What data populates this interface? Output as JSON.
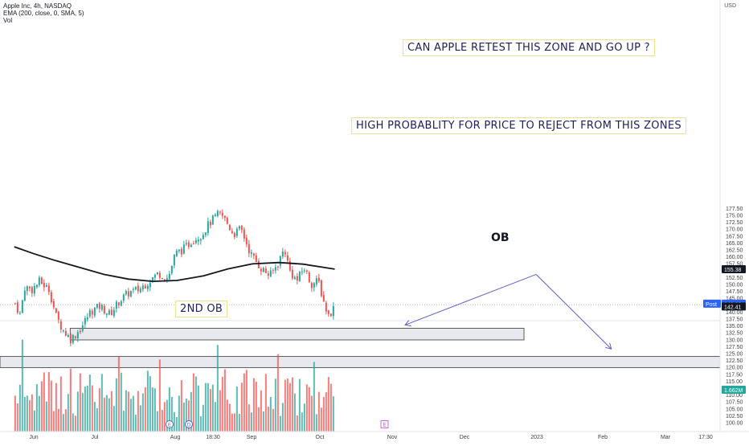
{
  "header": {
    "symbol_line": "Apple Inc, 4h, NASDAQ",
    "ema_line": "EMA (200, close, 0, SMA, 5)",
    "vol_line": "Vol"
  },
  "currency": "USD",
  "annotations": {
    "retest_question": "CAN APPLE RETEST THIS ZONE AND GO UP ?",
    "rejection_note": "HIGH PROBABLITY FOR PRICE TO REJECT FROM THIS ZONES",
    "ob_label": "OB",
    "second_ob_label": "2ND OB"
  },
  "price_badges": {
    "ema": "155.38",
    "post_label": "Post",
    "post": "142.66",
    "last": "142.41",
    "volume": "1.662M"
  },
  "event_markers": {
    "earnings": "E",
    "dividend": "D"
  },
  "colors": {
    "up": "#26a69a",
    "down": "#ef5350",
    "ema": "#131722",
    "arrow": "#5b5fc7",
    "post_badge": "#2962ff",
    "volume_badge": "#26a69a"
  },
  "chart_data": {
    "type": "candlestick",
    "title": "Apple Inc, 4h, NASDAQ",
    "y_axis": {
      "ylim": [
        97.5,
        178.5
      ],
      "ticks": [
        100.0,
        102.5,
        105.0,
        107.5,
        110.0,
        112.5,
        115.0,
        117.5,
        120.0,
        122.5,
        125.0,
        127.5,
        130.0,
        132.5,
        135.0,
        137.5,
        140.0,
        142.5,
        145.0,
        147.5,
        150.0,
        152.5,
        155.0,
        157.5,
        160.0,
        162.5,
        165.0,
        167.5,
        170.0,
        172.5,
        175.0,
        177.5
      ]
    },
    "x_axis": {
      "ticks": [
        "Jun",
        "Jul",
        "Aug",
        "18:30",
        "Sep",
        "Oct",
        "Nov",
        "Dec",
        "2023",
        "Feb",
        "Mar",
        "17:30"
      ]
    },
    "price_path": [
      {
        "x": "May 24",
        "close": 143.0
      },
      {
        "x": "May 26",
        "close": 139.0
      },
      {
        "x": "May 28",
        "close": 149.0
      },
      {
        "x": "May 31",
        "close": 148.0
      },
      {
        "x": "Jun 3",
        "close": 151.0
      },
      {
        "x": "Jun 7",
        "close": 148.0
      },
      {
        "x": "Jun 10",
        "close": 138.0
      },
      {
        "x": "Jun 13",
        "close": 133.0
      },
      {
        "x": "Jun 16",
        "close": 130.0
      },
      {
        "x": "Jun 20",
        "close": 134.0
      },
      {
        "x": "Jun 24",
        "close": 140.0
      },
      {
        "x": "Jun 28",
        "close": 142.0
      },
      {
        "x": "Jul 2",
        "close": 139.0
      },
      {
        "x": "Jul 6",
        "close": 144.0
      },
      {
        "x": "Jul 10",
        "close": 147.0
      },
      {
        "x": "Jul 14",
        "close": 148.0
      },
      {
        "x": "Jul 18",
        "close": 151.0
      },
      {
        "x": "Jul 22",
        "close": 154.0
      },
      {
        "x": "Jul 26",
        "close": 152.0
      },
      {
        "x": "Jul 29",
        "close": 161.0
      },
      {
        "x": "Aug 2",
        "close": 163.0
      },
      {
        "x": "Aug 5",
        "close": 166.0
      },
      {
        "x": "Aug 9",
        "close": 168.0
      },
      {
        "x": "Aug 12",
        "close": 172.0
      },
      {
        "x": "Aug 16",
        "close": 175.5
      },
      {
        "x": "Aug 18",
        "close": 174.0
      },
      {
        "x": "Aug 22",
        "close": 168.0
      },
      {
        "x": "Aug 25",
        "close": 170.0
      },
      {
        "x": "Aug 29",
        "close": 161.0
      },
      {
        "x": "Sep 2",
        "close": 156.0
      },
      {
        "x": "Sep 6",
        "close": 153.0
      },
      {
        "x": "Sep 9",
        "close": 157.0
      },
      {
        "x": "Sep 12",
        "close": 163.0
      },
      {
        "x": "Sep 14",
        "close": 155.0
      },
      {
        "x": "Sep 17",
        "close": 151.0
      },
      {
        "x": "Sep 20",
        "close": 156.0
      },
      {
        "x": "Sep 23",
        "close": 150.0
      },
      {
        "x": "Sep 26",
        "close": 151.0
      },
      {
        "x": "Sep 28",
        "close": 144.0
      },
      {
        "x": "Sep 30",
        "close": 138.5
      },
      {
        "x": "Oct 3",
        "close": 142.4
      }
    ],
    "ema_200": [
      {
        "x": "May 24",
        "value": 163.5
      },
      {
        "x": "Jun 1",
        "value": 161.0
      },
      {
        "x": "Jun 10",
        "value": 158.5
      },
      {
        "x": "Jun 20",
        "value": 156.0
      },
      {
        "x": "Jun 30",
        "value": 153.5
      },
      {
        "x": "Jul 10",
        "value": 151.8
      },
      {
        "x": "Jul 20",
        "value": 151.0
      },
      {
        "x": "Jul 30",
        "value": 151.3
      },
      {
        "x": "Aug 10",
        "value": 153.0
      },
      {
        "x": "Aug 20",
        "value": 155.5
      },
      {
        "x": "Aug 30",
        "value": 157.3
      },
      {
        "x": "Sep 10",
        "value": 157.8
      },
      {
        "x": "Sep 20",
        "value": 157.2
      },
      {
        "x": "Oct 3",
        "value": 155.4
      }
    ],
    "zones": [
      {
        "label": "OB",
        "from": 129.8,
        "to": 134.0,
        "start": "Jun 16",
        "end": "Dec 20"
      },
      {
        "label": "2ND OB",
        "from": 119.8,
        "to": 123.8,
        "start": "chart start",
        "end": "chart end"
      }
    ],
    "projection_arrows": [
      {
        "from": {
          "x": "Dec 25",
          "price": 153.5
        },
        "to": {
          "x": "Nov 1",
          "price": 135.2
        }
      },
      {
        "from": {
          "x": "Dec 25",
          "price": 153.5
        },
        "to": {
          "x": "Jan 25",
          "price": 126.5
        }
      }
    ],
    "volume_axis_label": "1.662M"
  }
}
